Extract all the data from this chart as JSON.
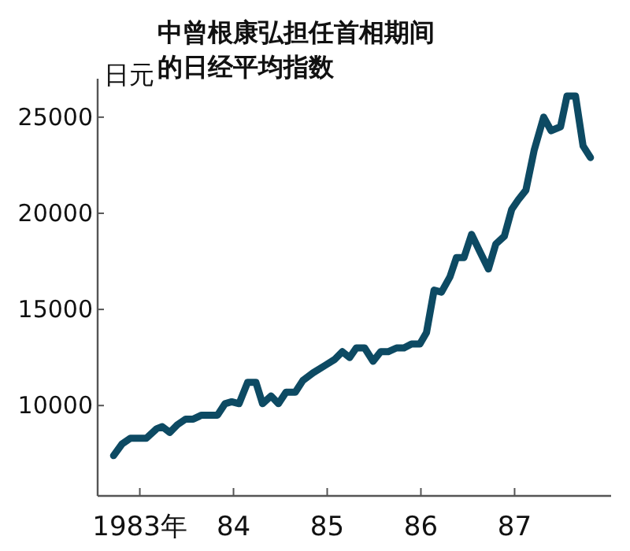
{
  "chart_data": {
    "type": "line",
    "title": "中曾根康弘担任首相期间的日经平均指数",
    "ylabel": "日元",
    "x": [
      1982.72,
      1982.81,
      1982.9,
      1983.07,
      1983.18,
      1983.24,
      1983.32,
      1983.4,
      1983.49,
      1983.57,
      1983.66,
      1983.83,
      1983.91,
      1983.98,
      1984.06,
      1984.15,
      1984.24,
      1984.31,
      1984.4,
      1984.48,
      1984.56,
      1984.66,
      1984.74,
      1984.85,
      1984.98,
      1985.08,
      1985.16,
      1985.24,
      1985.31,
      1985.4,
      1985.49,
      1985.57,
      1985.65,
      1985.74,
      1985.82,
      1985.9,
      1985.99,
      1986.06,
      1986.14,
      1986.22,
      1986.31,
      1986.38,
      1986.46,
      1986.54,
      1986.63,
      1986.72,
      1986.8,
      1986.89,
      1986.97,
      1987.04,
      1987.12,
      1987.21,
      1987.31,
      1987.39,
      1987.49,
      1987.56,
      1987.65,
      1987.73,
      1987.81
    ],
    "series": [
      {
        "color": "#0d4a63",
        "values": [
          7400,
          8000,
          8300,
          8300,
          8800,
          8900,
          8600,
          9000,
          9300,
          9300,
          9500,
          9500,
          10100,
          10200,
          10100,
          11200,
          11200,
          10100,
          10500,
          10100,
          10700,
          10700,
          11300,
          11700,
          12100,
          12400,
          12800,
          12500,
          13000,
          13000,
          12300,
          12800,
          12800,
          13000,
          13000,
          13200,
          13200,
          13800,
          16000,
          15900,
          16700,
          17700,
          17700,
          18900,
          18000,
          17100,
          18400,
          18800,
          20200,
          20700,
          21200,
          23300,
          25000,
          24300,
          24500,
          26100,
          26100,
          23500,
          22900
        ]
      }
    ],
    "xlim": [
      1982.55,
      1988.03
    ],
    "ylim": [
      5300,
      27000
    ],
    "xticks": [
      {
        "value": 1983,
        "label": "1983年"
      },
      {
        "value": 1984,
        "label": "84"
      },
      {
        "value": 1985,
        "label": "85"
      },
      {
        "value": 1986,
        "label": "86"
      },
      {
        "value": 1987,
        "label": "87"
      }
    ],
    "yticks": [
      10000,
      15000,
      20000,
      25000
    ],
    "marker": "none",
    "line_style": "solid"
  }
}
